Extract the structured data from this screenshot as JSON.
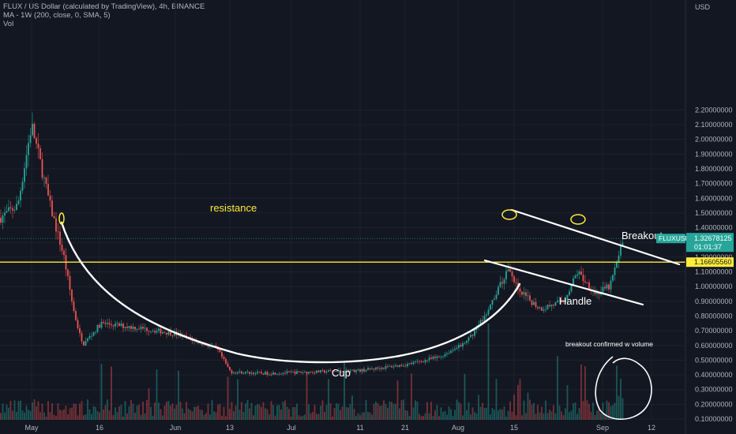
{
  "header": {
    "title": "FLUX / US Dollar (calculated by TradingView), 4h, BINANCE",
    "indicator": "MA - 1W (200, close, 0, SMA, 5)",
    "volume_label": "Vol"
  },
  "chart_data": {
    "type": "candlestick",
    "symbol": "FLUXUSD",
    "currency_label": "USD",
    "ylim": [
      0.08,
      2.3
    ],
    "y_ticks": [
      "2.20000000",
      "2.10000000",
      "2.00000000",
      "1.90000000",
      "1.80000000",
      "1.70000000",
      "1.60000000",
      "1.50000000",
      "1.40000000",
      "1.30000000",
      "1.20000000",
      "1.10000000",
      "1.00000000",
      "0.90000000",
      "0.80000000",
      "0.70000000",
      "0.60000000",
      "0.50000000",
      "0.40000000",
      "0.30000000",
      "0.20000000",
      "0.10000000"
    ],
    "x_ticks": [
      "May",
      "16",
      "Jun",
      "13",
      "Jul",
      "11",
      "21",
      "Aug",
      "15",
      "Sep",
      "12"
    ],
    "last_price": {
      "label": "FLUXUSD",
      "value": "1.32678125",
      "countdown": "01:01:37",
      "level": 1.3268
    },
    "resistance_price": {
      "value": "1.16605560",
      "level": 1.166
    },
    "series": [
      {
        "date": "Apr 22",
        "close": 1.42
      },
      {
        "date": "Apr 28",
        "close": 1.55
      },
      {
        "date": "May 1",
        "close": 2.1
      },
      {
        "date": "May 5",
        "close": 1.55
      },
      {
        "date": "May 8",
        "close": 1.2
      },
      {
        "date": "May 10",
        "close": 0.85
      },
      {
        "date": "May 12",
        "close": 0.6
      },
      {
        "date": "May 16",
        "close": 0.75
      },
      {
        "date": "May 24",
        "close": 0.72
      },
      {
        "date": "Jun 1",
        "close": 0.68
      },
      {
        "date": "Jun 10",
        "close": 0.58
      },
      {
        "date": "Jun 13",
        "close": 0.42
      },
      {
        "date": "Jun 20",
        "close": 0.41
      },
      {
        "date": "Jul 1",
        "close": 0.42
      },
      {
        "date": "Jul 11",
        "close": 0.43
      },
      {
        "date": "Jul 21",
        "close": 0.47
      },
      {
        "date": "Jul 28",
        "close": 0.52
      },
      {
        "date": "Aug 3",
        "close": 0.62
      },
      {
        "date": "Aug 8",
        "close": 0.85
      },
      {
        "date": "Aug 12",
        "close": 1.12
      },
      {
        "date": "Aug 15",
        "close": 0.95
      },
      {
        "date": "Aug 19",
        "close": 0.85
      },
      {
        "date": "Aug 24",
        "close": 0.9
      },
      {
        "date": "Aug 27",
        "close": 1.1
      },
      {
        "date": "Aug 31",
        "close": 0.95
      },
      {
        "date": "Sep 3",
        "close": 1.0
      },
      {
        "date": "Sep 6",
        "close": 1.33
      }
    ],
    "annotations": [
      "resistance",
      "Breakout",
      "Handle",
      "Cup",
      "breakout confirmed w volume"
    ],
    "colors": {
      "up": "#26a69a",
      "down": "#ef5350",
      "resistance": "#ffeb3b",
      "annotation": "#ffffff",
      "grid": "#1e222d",
      "price_badge": "#26a69a"
    }
  }
}
